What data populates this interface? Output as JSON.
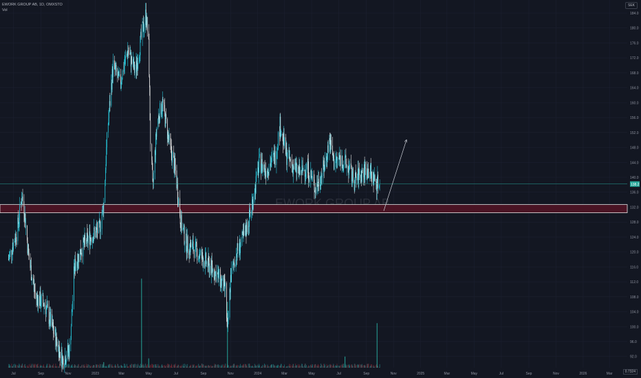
{
  "header": {
    "title": "EWORK GROUP AB, 1D, OMXSTO",
    "indicator": "Vol"
  },
  "currency": "SEK",
  "watermark": "EWORK GROUP AB",
  "last_price_label": "138.2",
  "corner_label": "0.7324",
  "chart_data": {
    "type": "candlestick",
    "y_axis": {
      "ticks": [
        184.0,
        180.0,
        176.0,
        172.0,
        168.0,
        164.0,
        160.0,
        156.0,
        152.0,
        148.0,
        144.0,
        140.0,
        136.0,
        132.0,
        128.0,
        124.0,
        120.0,
        116.0,
        112.0,
        108.0,
        104.0,
        100.0,
        96.0,
        92.0
      ],
      "tick_labels": [
        "184.0",
        "180.0",
        "176.0",
        "172.0",
        "168.0",
        "164.0",
        "160.0",
        "156.0",
        "152.0",
        "148.0",
        "144.0",
        "140.0",
        "136.0",
        "132.0",
        "128.0",
        "124.0",
        "120.0",
        "116.0",
        "112.0",
        "108.0",
        "104.0",
        "100.0",
        "96.0",
        "92.0"
      ],
      "range": [
        89.0,
        187.5
      ]
    },
    "x_axis": {
      "tick_labels": [
        "Jul",
        "Sep",
        "Nov",
        "2023",
        "Mar",
        "May",
        "Jul",
        "Sep",
        "Nov",
        "2024",
        "Mar",
        "May",
        "Jul",
        "Sep",
        "Nov",
        "2025",
        "Mar",
        "May",
        "Jul",
        "Sep",
        "Nov",
        "2026",
        "Mar"
      ]
    },
    "price_path": [
      [
        "2022-06-20",
        118
      ],
      [
        "2022-07-10",
        126
      ],
      [
        "2022-07-20",
        135
      ],
      [
        "2022-07-25",
        132
      ],
      [
        "2022-08-05",
        118
      ],
      [
        "2022-08-20",
        108
      ],
      [
        "2022-09-10",
        106
      ],
      [
        "2022-10-01",
        98
      ],
      [
        "2022-10-20",
        91
      ],
      [
        "2022-11-05",
        94
      ],
      [
        "2022-11-15",
        116
      ],
      [
        "2022-12-01",
        121
      ],
      [
        "2022-12-20",
        124
      ],
      [
        "2023-01-10",
        126
      ],
      [
        "2023-01-20",
        133
      ],
      [
        "2023-01-28",
        152
      ],
      [
        "2023-02-10",
        170
      ],
      [
        "2023-02-25",
        165
      ],
      [
        "2023-03-15",
        174
      ],
      [
        "2023-04-01",
        168
      ],
      [
        "2023-04-15",
        178
      ],
      [
        "2023-04-25",
        184
      ],
      [
        "2023-05-01",
        175
      ],
      [
        "2023-05-05",
        150
      ],
      [
        "2023-05-10",
        137
      ],
      [
        "2023-05-20",
        155
      ],
      [
        "2023-06-01",
        160
      ],
      [
        "2023-06-15",
        150
      ],
      [
        "2023-07-01",
        141
      ],
      [
        "2023-07-12",
        128
      ],
      [
        "2023-07-25",
        122
      ],
      [
        "2023-08-10",
        121
      ],
      [
        "2023-09-01",
        118
      ],
      [
        "2023-10-01",
        114
      ],
      [
        "2023-10-20",
        110
      ],
      [
        "2023-10-25",
        98
      ],
      [
        "2023-11-01",
        113
      ],
      [
        "2023-11-15",
        120
      ],
      [
        "2023-12-01",
        124
      ],
      [
        "2023-12-15",
        130
      ],
      [
        "2024-01-05",
        144
      ],
      [
        "2024-01-20",
        142
      ],
      [
        "2024-02-10",
        146
      ],
      [
        "2024-02-20",
        154
      ],
      [
        "2024-03-05",
        146
      ],
      [
        "2024-03-20",
        143
      ],
      [
        "2024-04-05",
        141
      ],
      [
        "2024-04-20",
        143
      ],
      [
        "2024-05-10",
        137
      ],
      [
        "2024-05-30",
        143
      ],
      [
        "2024-06-10",
        150
      ],
      [
        "2024-06-20",
        144
      ],
      [
        "2024-07-05",
        145
      ],
      [
        "2024-07-20",
        143
      ],
      [
        "2024-08-05",
        139
      ],
      [
        "2024-08-20",
        141
      ],
      [
        "2024-09-05",
        142
      ],
      [
        "2024-09-20",
        139
      ],
      [
        "2024-10-01",
        138.2
      ]
    ],
    "support_zone": [
      130.5,
      132.7
    ],
    "last_price": 138.2,
    "projection": {
      "from": [
        "2024-10-10",
        131.0
      ],
      "to": [
        "2024-11-30",
        150.0
      ]
    },
    "volume_spikes": [
      [
        "2023-04-15",
        0.96
      ],
      [
        "2023-05-01",
        0.1
      ],
      [
        "2023-10-25",
        0.71
      ],
      [
        "2024-09-25",
        0.48
      ],
      [
        "2024-07-15",
        0.12
      ],
      [
        "2023-01-20",
        0.06
      ]
    ],
    "grid": true,
    "legend": "none"
  }
}
